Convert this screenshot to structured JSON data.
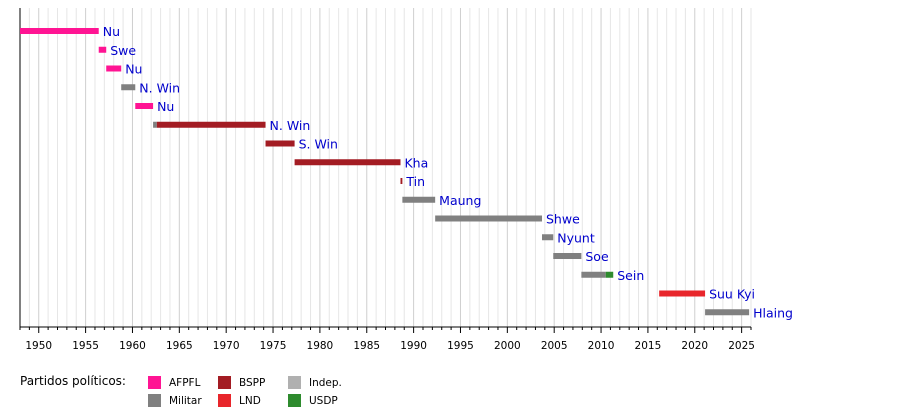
{
  "chart_data": {
    "type": "timeline",
    "x_range": [
      1948,
      2026
    ],
    "x_ticks": [
      1950,
      1955,
      1960,
      1965,
      1970,
      1975,
      1980,
      1985,
      1990,
      1995,
      2000,
      2005,
      2010,
      2015,
      2020,
      2025
    ],
    "grid": "vertical, yearly",
    "colors": {
      "AFPFL": "#ff1493",
      "Militar": "#808080",
      "BSPP": "#a31c23",
      "LND": "#e8262b",
      "Indep": "#b0b0b0",
      "USDP": "#2e8b2e"
    },
    "rows": [
      {
        "label": "Nu",
        "segments": [
          {
            "start": 1948.0,
            "end": 1956.4,
            "party": "AFPFL"
          }
        ]
      },
      {
        "label": "Swe",
        "segments": [
          {
            "start": 1956.4,
            "end": 1957.2,
            "party": "AFPFL"
          }
        ]
      },
      {
        "label": "Nu",
        "segments": [
          {
            "start": 1957.2,
            "end": 1958.8,
            "party": "AFPFL"
          }
        ]
      },
      {
        "label": "N. Win",
        "segments": [
          {
            "start": 1958.8,
            "end": 1960.3,
            "party": "Militar"
          }
        ]
      },
      {
        "label": "Nu",
        "segments": [
          {
            "start": 1960.3,
            "end": 1962.2,
            "party": "AFPFL"
          }
        ]
      },
      {
        "label": "N. Win",
        "segments": [
          {
            "start": 1962.2,
            "end": 1962.6,
            "party": "Militar"
          },
          {
            "start": 1962.6,
            "end": 1974.2,
            "party": "BSPP"
          }
        ]
      },
      {
        "label": "S. Win",
        "segments": [
          {
            "start": 1974.2,
            "end": 1977.3,
            "party": "BSPP"
          }
        ]
      },
      {
        "label": "Kha",
        "segments": [
          {
            "start": 1977.3,
            "end": 1988.6,
            "party": "BSPP"
          }
        ]
      },
      {
        "label": "Tin",
        "segments": [
          {
            "start": 1988.6,
            "end": 1988.8,
            "party": "BSPP"
          }
        ]
      },
      {
        "label": "Maung",
        "segments": [
          {
            "start": 1988.8,
            "end": 1992.3,
            "party": "Militar"
          }
        ]
      },
      {
        "label": "Shwe",
        "segments": [
          {
            "start": 1992.3,
            "end": 2003.7,
            "party": "Militar"
          }
        ]
      },
      {
        "label": "Nyunt",
        "segments": [
          {
            "start": 2003.7,
            "end": 2004.9,
            "party": "Militar"
          }
        ]
      },
      {
        "label": "Soe",
        "segments": [
          {
            "start": 2004.9,
            "end": 2007.9,
            "party": "Militar"
          }
        ]
      },
      {
        "label": "Sein",
        "segments": [
          {
            "start": 2007.9,
            "end": 2010.5,
            "party": "Militar"
          },
          {
            "start": 2010.5,
            "end": 2011.3,
            "party": "USDP"
          }
        ]
      },
      {
        "label": "Suu Kyi",
        "segments": [
          {
            "start": 2016.2,
            "end": 2021.1,
            "party": "LND"
          }
        ]
      },
      {
        "label": "Hlaing",
        "segments": [
          {
            "start": 2021.1,
            "end": 2025.8,
            "party": "Militar"
          }
        ]
      }
    ],
    "legend": {
      "title": "Partidos políticos:",
      "entries": [
        {
          "name": "AFPFL",
          "party": "AFPFL"
        },
        {
          "name": "Militar",
          "party": "Militar"
        },
        {
          "name": "BSPP",
          "party": "BSPP"
        },
        {
          "name": "LND",
          "party": "LND"
        },
        {
          "name": "Indep.",
          "party": "Indep"
        },
        {
          "name": "USDP",
          "party": "USDP"
        }
      ]
    }
  }
}
